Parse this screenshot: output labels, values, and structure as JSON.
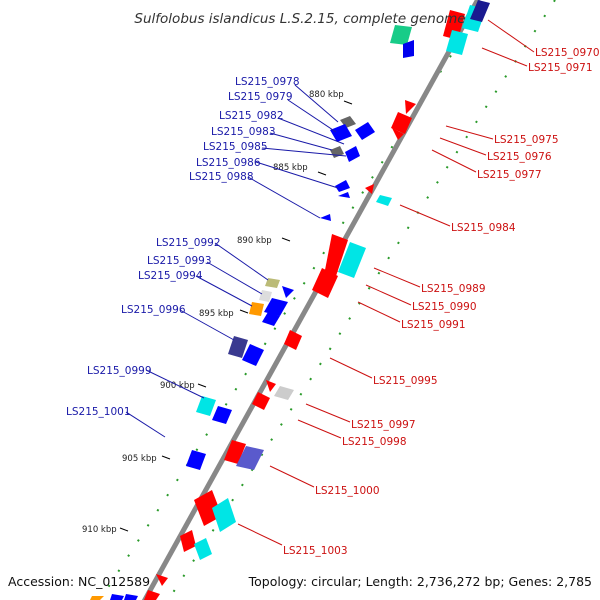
{
  "title": "Sulfolobus islandicus L.S.2.15, complete genome",
  "footer": {
    "accession": "Accession: NC_012589",
    "topology": "Topology: circular; Length: 2,736,272 bp; Genes: 2,785"
  },
  "ticks": [
    "880 kbp",
    "885 kbp",
    "890 kbp",
    "895 kbp",
    "900 kbp",
    "905 kbp",
    "910 kbp"
  ],
  "genes_left": [
    "LS215_0978",
    "LS215_0979",
    "LS215_0982",
    "LS215_0983",
    "LS215_0985",
    "LS215_0986",
    "LS215_0988",
    "LS215_0992",
    "LS215_0993",
    "LS215_0994",
    "LS215_0996",
    "LS215_0999",
    "LS215_1001"
  ],
  "genes_right": [
    "LS215_0970",
    "LS215_0971",
    "LS215_0975",
    "LS215_0976",
    "LS215_0977",
    "LS215_0984",
    "LS215_0989",
    "LS215_0990",
    "LS215_0991",
    "LS215_0995",
    "LS215_0997",
    "LS215_0998",
    "LS215_1000",
    "LS215_1003"
  ],
  "colors": {
    "backbone": "#888888",
    "forward_strand": "#ff0000",
    "reverse_strand": "#0000ff",
    "left_label": "#1a1aa8",
    "right_label": "#cc1111",
    "cyan_feature": "#00e5e5",
    "slate_feature": "#5a5aaa",
    "orange_feature": "#ff9900"
  }
}
